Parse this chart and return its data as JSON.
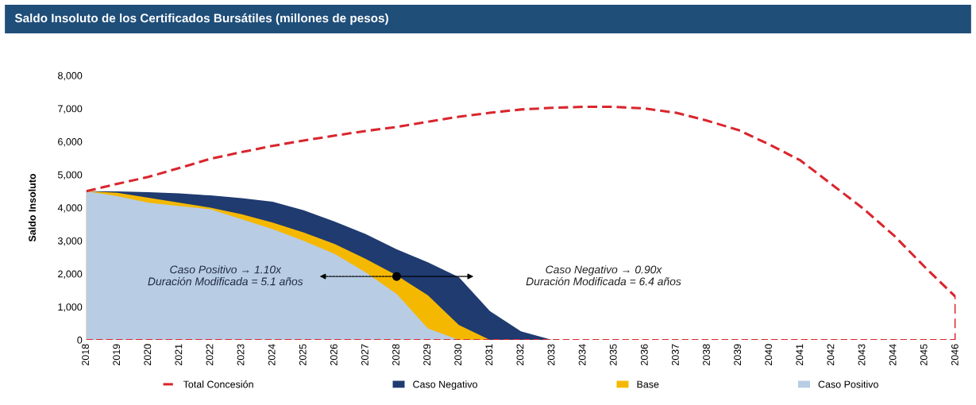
{
  "chart_data": {
    "type": "area",
    "title": "Saldo Insoluto de los Certificados Bursátiles (millones de pesos)",
    "ylabel": "Saldo Insoluto",
    "series": [
      {
        "name": "Total Concesión",
        "type": "line",
        "color": "#d9262e",
        "line_style": "dashed",
        "x": [
          2018,
          2019,
          2020,
          2021,
          2022,
          2023,
          2024,
          2025,
          2026,
          2027,
          2028,
          2029,
          2030,
          2031,
          2032,
          2033,
          2034,
          2035,
          2036,
          2037,
          2038,
          2039,
          2040,
          2041,
          2042,
          2043,
          2044,
          2045,
          2046,
          2046
        ],
        "values": [
          4500,
          4720,
          4930,
          5200,
          5480,
          5680,
          5870,
          6030,
          6180,
          6320,
          6440,
          6600,
          6750,
          6870,
          6970,
          7020,
          7050,
          7050,
          7000,
          6870,
          6630,
          6350,
          5910,
          5430,
          4710,
          3990,
          3170,
          2210,
          1300,
          0
        ]
      },
      {
        "name": "Caso Negativo",
        "color": "#1f3b70",
        "x": [
          2018,
          2019,
          2020,
          2021,
          2022,
          2023,
          2024,
          2025,
          2026,
          2027,
          2028,
          2029,
          2030,
          2031,
          2032,
          2033
        ],
        "values": [
          4500,
          4490,
          4470,
          4430,
          4370,
          4290,
          4180,
          3920,
          3580,
          3200,
          2740,
          2350,
          1900,
          870,
          260,
          0
        ]
      },
      {
        "name": "Base",
        "color": "#f5b800",
        "x": [
          2018,
          2019,
          2020,
          2021,
          2022,
          2023,
          2024,
          2025,
          2026,
          2027,
          2028,
          2029,
          2030,
          2031
        ],
        "values": [
          4500,
          4450,
          4300,
          4150,
          4000,
          3800,
          3550,
          3250,
          2900,
          2450,
          1950,
          1350,
          450,
          0
        ]
      },
      {
        "name": "Caso Positivo",
        "color": "#b8cce4",
        "x": [
          2018,
          2019,
          2020,
          2021,
          2022,
          2023,
          2024,
          2025,
          2026,
          2027,
          2028,
          2029,
          2030
        ],
        "values": [
          4500,
          4350,
          4150,
          4050,
          3950,
          3650,
          3350,
          3000,
          2600,
          2040,
          1390,
          350,
          0
        ]
      }
    ],
    "xlim": [
      2018,
      2046
    ],
    "xticks": [
      2018,
      2019,
      2020,
      2021,
      2022,
      2023,
      2024,
      2025,
      2026,
      2027,
      2028,
      2029,
      2030,
      2031,
      2032,
      2033,
      2034,
      2035,
      2036,
      2037,
      2038,
      2039,
      2040,
      2041,
      2042,
      2043,
      2044,
      2045,
      2046
    ],
    "ylim": [
      0,
      8000
    ],
    "yticks": [
      {
        "value": 0,
        "label": "0"
      },
      {
        "value": 1000,
        "label": "1,000"
      },
      {
        "value": 2000,
        "label": "2,000"
      },
      {
        "value": 3000,
        "label": "3,000"
      },
      {
        "value": 4000,
        "label": "4,000"
      },
      {
        "value": 5000,
        "label": "5,000"
      },
      {
        "value": 6000,
        "label": "6,000"
      },
      {
        "value": 7000,
        "label": "7,000"
      },
      {
        "value": 8000,
        "label": "8,000"
      }
    ],
    "ref_lines": [
      {
        "axis": "y",
        "value": 0,
        "color": "#d9262e",
        "line_style": "dashed"
      }
    ],
    "annotations": [
      "Caso Positivo → 1.10x\nDuración Modificada = 5.1 años",
      "Caso Negativo → 0.90x\nDuración Modificada = 6.4 años"
    ],
    "grid": false,
    "legend": "bottom"
  }
}
